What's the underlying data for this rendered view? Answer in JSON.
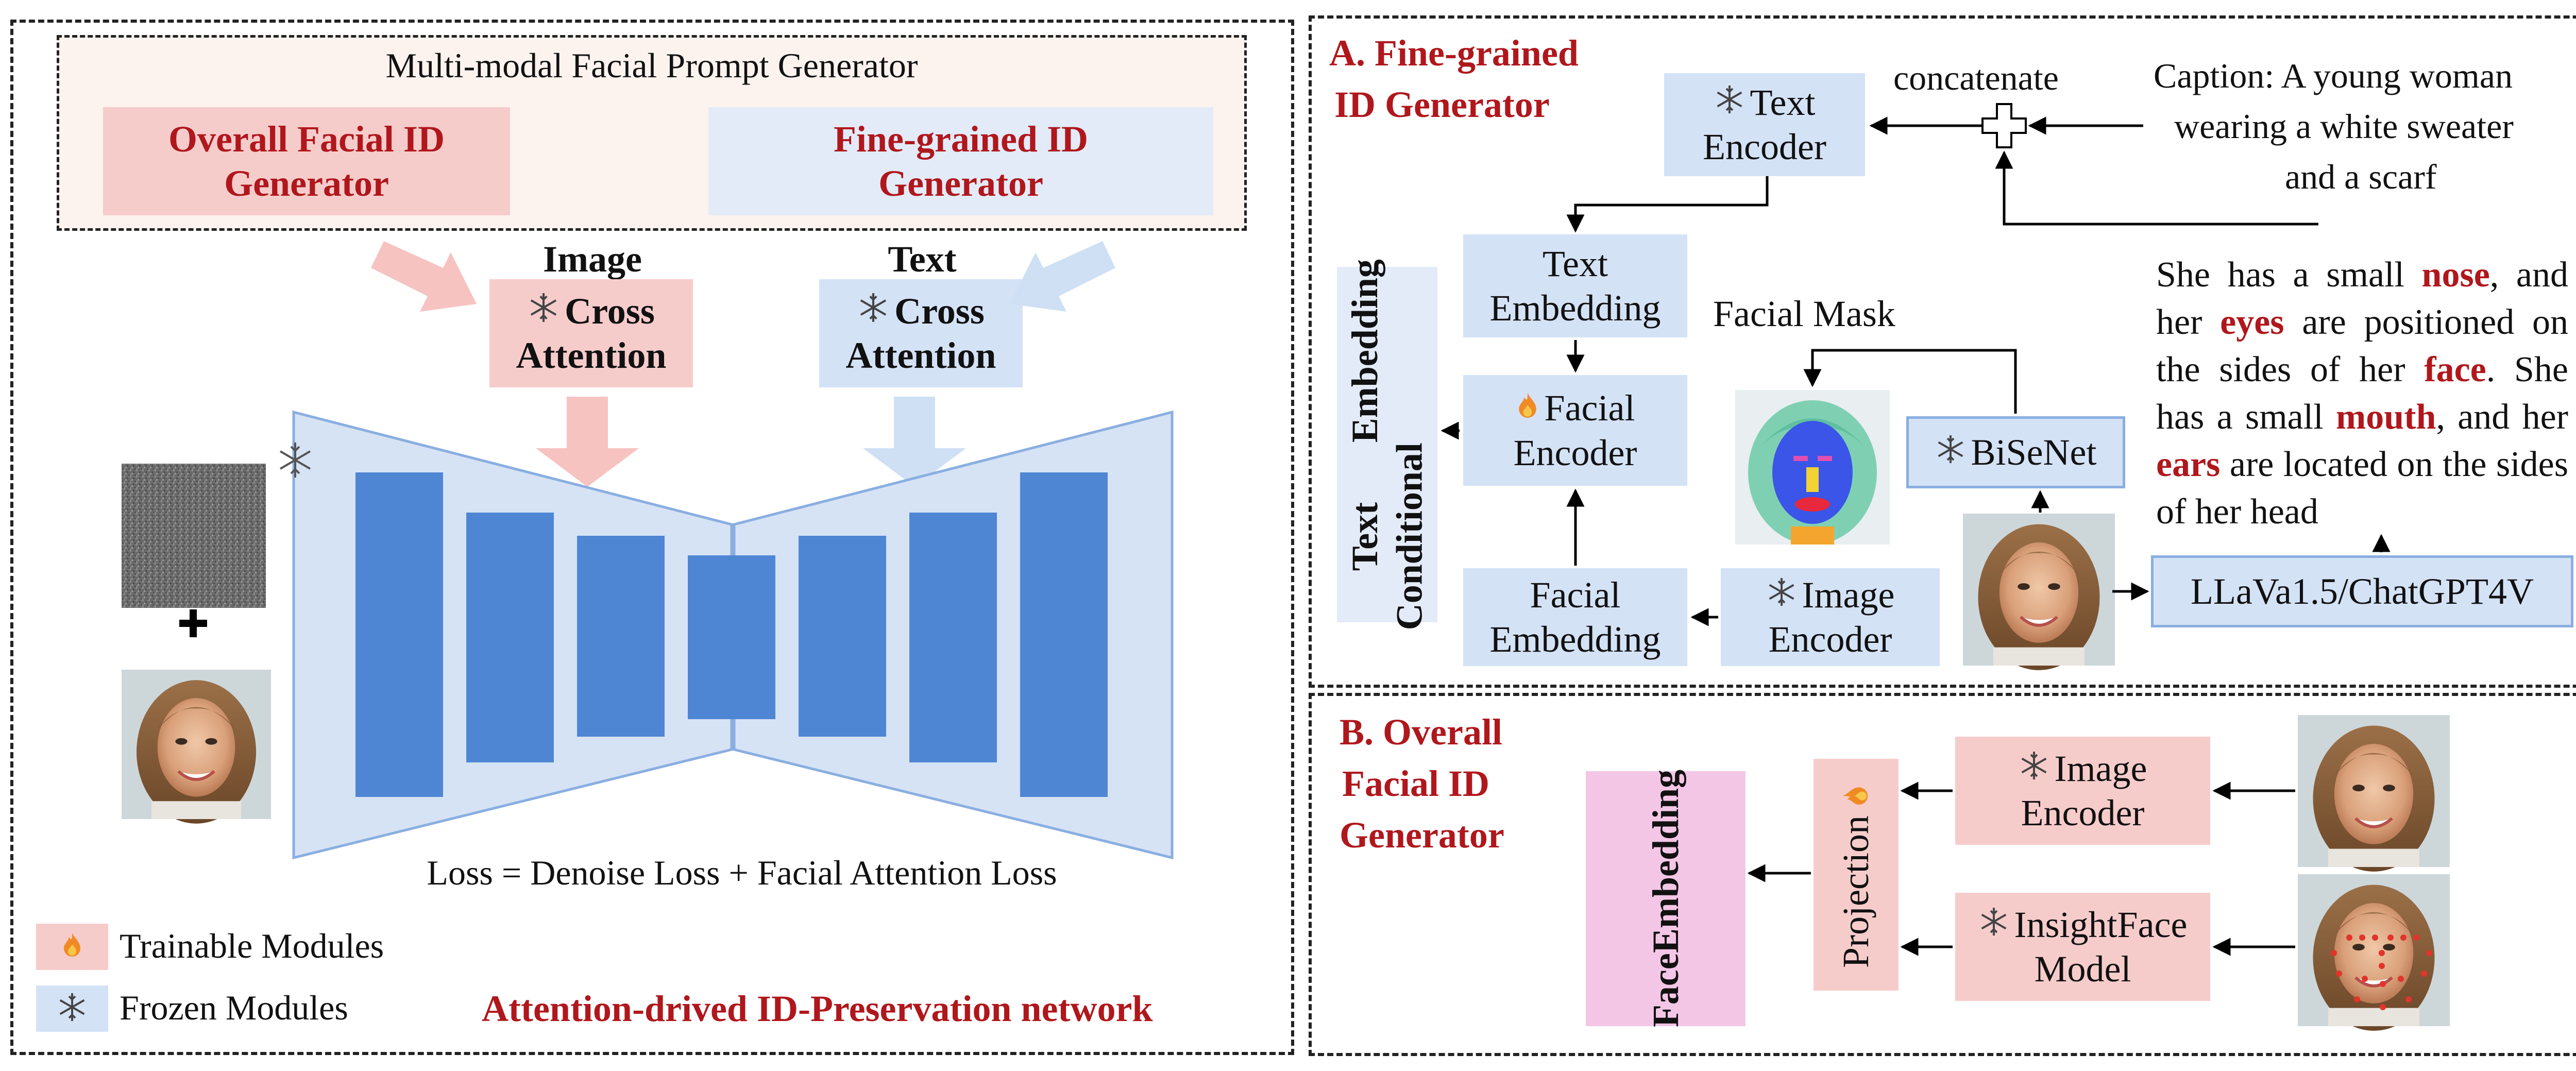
{
  "left_panel": {
    "prompt_generator": {
      "title": "Multi-modal Facial Prompt Generator",
      "overall_label": "Overall Facial ID Generator",
      "fine_label": "Fine-grained ID Generator"
    },
    "image_attention": {
      "header": "Image",
      "line1": "Cross",
      "line2": "Attention"
    },
    "text_attention": {
      "header": "Text",
      "line1": "Cross",
      "line2": "Attention"
    },
    "plus_symbol": "+",
    "loss": "Loss = Denoise Loss + Facial Attention Loss",
    "legend": {
      "trainable": "Trainable Modules",
      "frozen": "Frozen Modules"
    },
    "network_title": "Attention-drived ID-Preservation network"
  },
  "panel_a": {
    "title_line1": "A. Fine-grained",
    "title_line2": "ID Generator",
    "text_encoder": {
      "line1": "Text",
      "line2": "Encoder"
    },
    "concatenate": "concatenate",
    "caption": [
      "Caption: A young woman",
      "wearing a white sweater",
      "and a scarf"
    ],
    "text_embedding": {
      "line1": "Text",
      "line2": "Embedding"
    },
    "facial_encoder": {
      "line1": "Facial",
      "line2": "Encoder"
    },
    "facial_embedding": {
      "line1": "Facial",
      "line2": "Embedding"
    },
    "image_encoder": {
      "line1": "Image",
      "line2": "Encoder"
    },
    "facial_mask": "Facial Mask",
    "bisenet": "BiSeNet",
    "llava": "LLaVa1.5/ChatGPT4V",
    "text_conditional": {
      "line1": "Text Conditional",
      "line2": "Embedding"
    },
    "description": {
      "p1": "She has a small ",
      "w1": "nose",
      "p2": ", and her ",
      "w2": "eyes",
      "p3": " are positioned on the sides of her ",
      "w3": "face",
      "p4": ". She has a small ",
      "w4": "mouth",
      "p5": ", and her ",
      "w5": "ears",
      "p6": " are located on the sides of her head"
    }
  },
  "panel_b": {
    "title": [
      "B. Overall",
      "Facial ID",
      "Generator"
    ],
    "image_encoder": {
      "line1": "Image",
      "line2": "Encoder"
    },
    "insightface": {
      "line1": "InsightFace",
      "line2": "Model"
    },
    "projection": "Projection",
    "face_embedding": {
      "line1": "Face",
      "line2": "Embedding"
    }
  },
  "colors": {
    "accent_red": "#b0171c",
    "trainable_pink": "#f6cccb",
    "frozen_blue": "#d4e2f6",
    "unet_block": "#5b8fd6",
    "unet_fill": "#d6e3f5"
  },
  "icons": [
    "snowflake-icon",
    "fire-icon",
    "plus-icon"
  ]
}
